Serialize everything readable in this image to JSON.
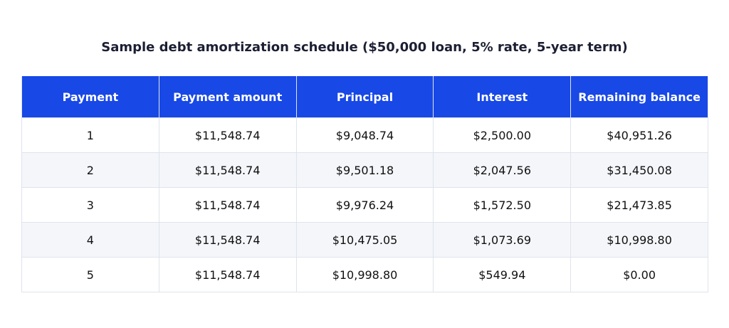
{
  "title": "Sample debt amortization schedule ($50,000 loan, 5% rate, 5-year term)",
  "table": {
    "columns": [
      "Payment",
      "Payment amount",
      "Principal",
      "Interest",
      "Remaining balance"
    ],
    "rows": [
      [
        "1",
        "$11,548.74",
        "$9,048.74",
        "$2,500.00",
        "$40,951.26"
      ],
      [
        "2",
        "$11,548.74",
        "$9,501.18",
        "$2,047.56",
        "$31,450.08"
      ],
      [
        "3",
        "$11,548.74",
        "$9,976.24",
        "$1,572.50",
        "$21,473.85"
      ],
      [
        "4",
        "$11,548.74",
        "$10,475.05",
        "$1,073.69",
        "$10,998.80"
      ],
      [
        "5",
        "$11,548.74",
        "$10,998.80",
        "$549.94",
        "$0.00"
      ]
    ]
  }
}
